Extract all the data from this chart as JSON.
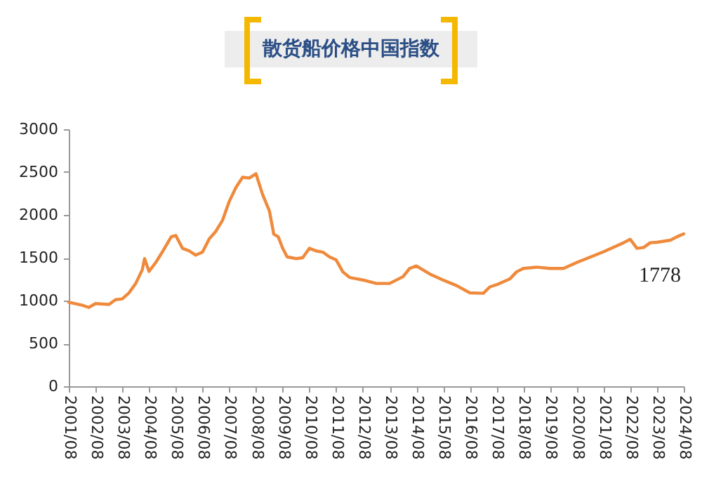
{
  "chart_data": {
    "type": "line",
    "title": "散货船价格中国指数",
    "x": [
      "2001-08",
      "2002-02",
      "2002-05",
      "2002-08",
      "2003-02",
      "2003-05",
      "2003-08",
      "2003-11",
      "2004-02",
      "2004-05",
      "2004-06",
      "2004-08",
      "2004-11",
      "2005-02",
      "2005-06",
      "2005-08",
      "2005-11",
      "2006-02",
      "2006-05",
      "2006-08",
      "2006-11",
      "2007-02",
      "2007-05",
      "2007-08",
      "2007-11",
      "2008-02",
      "2008-05",
      "2008-08",
      "2008-11",
      "2009-02",
      "2009-04",
      "2009-06",
      "2009-08",
      "2009-10",
      "2010-02",
      "2010-05",
      "2010-08",
      "2010-11",
      "2011-02",
      "2011-05",
      "2011-08",
      "2011-11",
      "2012-02",
      "2012-08",
      "2013-02",
      "2013-08",
      "2014-02",
      "2014-05",
      "2014-08",
      "2015-02",
      "2015-08",
      "2016-02",
      "2016-08",
      "2017-02",
      "2017-05",
      "2017-08",
      "2018-02",
      "2018-05",
      "2018-08",
      "2019-02",
      "2019-08",
      "2020-02",
      "2020-08",
      "2021-08",
      "2022-05",
      "2022-08",
      "2022-11",
      "2023-02",
      "2023-05",
      "2023-08",
      "2024-02",
      "2024-05",
      "2024-08"
    ],
    "series": [
      {
        "color": "#ef8a3c",
        "values": [
          980,
          945,
          920,
          965,
          955,
          1010,
          1020,
          1090,
          1200,
          1360,
          1490,
          1340,
          1445,
          1570,
          1745,
          1760,
          1610,
          1580,
          1530,
          1565,
          1720,
          1810,
          1935,
          2155,
          2320,
          2440,
          2430,
          2480,
          2235,
          2045,
          1775,
          1745,
          1610,
          1510,
          1490,
          1500,
          1610,
          1580,
          1565,
          1510,
          1475,
          1335,
          1270,
          1240,
          1200,
          1200,
          1280,
          1375,
          1405,
          1310,
          1240,
          1175,
          1090,
          1085,
          1160,
          1185,
          1255,
          1335,
          1375,
          1390,
          1375,
          1375,
          1445,
          1570,
          1675,
          1715,
          1610,
          1620,
          1675,
          1680,
          1705,
          1745,
          1778
        ]
      }
    ],
    "xlim": [
      "2001-08",
      "2024-08"
    ],
    "xticks": [
      {
        "value": "2001-08",
        "label": "2001/08"
      },
      {
        "value": "2002-08",
        "label": "2002/08"
      },
      {
        "value": "2003-08",
        "label": "2003/08"
      },
      {
        "value": "2004-08",
        "label": "2004/08"
      },
      {
        "value": "2005-08",
        "label": "2005/08"
      },
      {
        "value": "2006-08",
        "label": "2006/08"
      },
      {
        "value": "2007-08",
        "label": "2007/08"
      },
      {
        "value": "2008-08",
        "label": "2008/08"
      },
      {
        "value": "2009-08",
        "label": "2009/08"
      },
      {
        "value": "2010-08",
        "label": "2010/08"
      },
      {
        "value": "2011-08",
        "label": "2011/08"
      },
      {
        "value": "2012-08",
        "label": "2012/08"
      },
      {
        "value": "2013-08",
        "label": "2013/08"
      },
      {
        "value": "2014-08",
        "label": "2014/08"
      },
      {
        "value": "2015-08",
        "label": "2015/08"
      },
      {
        "value": "2016-08",
        "label": "2016/08"
      },
      {
        "value": "2017-08",
        "label": "2017/08"
      },
      {
        "value": "2018-08",
        "label": "2018/08"
      },
      {
        "value": "2019-08",
        "label": "2019/08"
      },
      {
        "value": "2020-08",
        "label": "2020/08"
      },
      {
        "value": "2021-08",
        "label": "2021/08"
      },
      {
        "value": "2022-08",
        "label": "2022/08"
      },
      {
        "value": "2023-08",
        "label": "2023/08"
      },
      {
        "value": "2024-08",
        "label": "2024/08"
      }
    ],
    "ylim": [
      0,
      3000
    ],
    "yticks": [
      0,
      500,
      1000,
      1500,
      2000,
      2500,
      3000
    ],
    "grid": false,
    "annotations": [
      {
        "text": "1778",
        "x": "2024-08",
        "y": 1778
      }
    ]
  }
}
